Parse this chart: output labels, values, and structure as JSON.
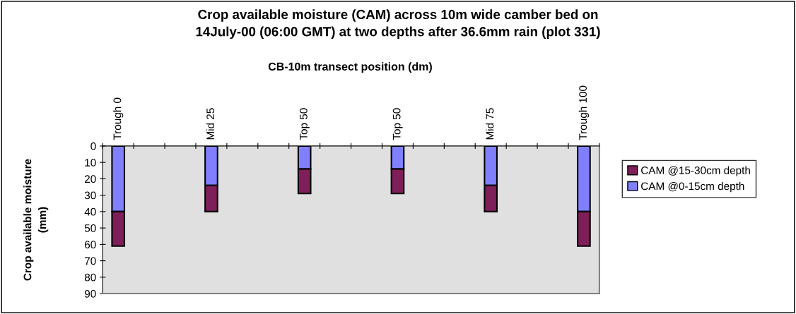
{
  "chart_data": {
    "type": "bar",
    "stacked": true,
    "title": "Crop available moisture (CAM) across 10m wide camber bed on\n14July-00 (06:00 GMT) at two depths after 36.6mm rain (plot 331)",
    "xlabel": "CB-10m transect position (dm)",
    "ylabel": "Crop available moisture\n(mm)",
    "categories": [
      "Trough 0",
      null,
      null,
      "Mid 25",
      null,
      null,
      "Top 50",
      null,
      null,
      "Top 50",
      null,
      null,
      "Mid 75",
      null,
      null,
      "Trough 100"
    ],
    "series": [
      {
        "name": "CAM @0-15cm depth",
        "color": "#8080ff",
        "values": [
          40,
          null,
          null,
          24,
          null,
          null,
          14,
          null,
          null,
          14,
          null,
          null,
          24,
          null,
          null,
          40
        ]
      },
      {
        "name": "CAM @15-30cm depth",
        "color": "#7f1f5a",
        "values": [
          21,
          null,
          null,
          16,
          null,
          null,
          15,
          null,
          null,
          15,
          null,
          null,
          16,
          null,
          null,
          21
        ]
      }
    ],
    "ylim": [
      90,
      0
    ],
    "yticks": [
      0,
      10,
      20,
      30,
      40,
      50,
      60,
      70,
      80,
      90
    ],
    "grid": false,
    "legend": "right"
  }
}
